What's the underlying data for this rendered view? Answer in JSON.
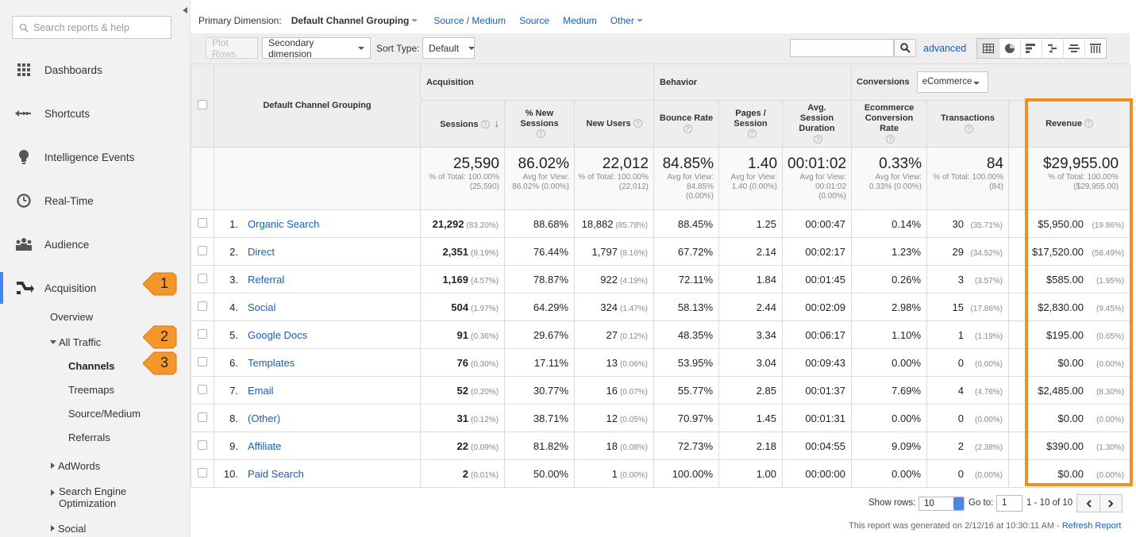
{
  "sidebar": {
    "search_placeholder": "Search reports & help",
    "nav": [
      {
        "label": "Dashboards",
        "icon": "grid-icon"
      },
      {
        "label": "Shortcuts",
        "icon": "shortcut-arrow-icon"
      },
      {
        "label": "Intelligence Events",
        "icon": "lightbulb-icon"
      },
      {
        "label": "Real-Time",
        "icon": "clock-icon"
      },
      {
        "label": "Audience",
        "icon": "people-icon"
      },
      {
        "label": "Acquisition",
        "icon": "acquisition-icon"
      }
    ],
    "sub": {
      "overview": "Overview",
      "all_traffic": "All Traffic",
      "channels": "Channels",
      "treemaps": "Treemaps",
      "source_medium": "Source/Medium",
      "referrals": "Referrals",
      "adwords": "AdWords",
      "seo": "Search Engine Optimization",
      "social": "Social"
    },
    "callouts": [
      "1",
      "2",
      "3"
    ]
  },
  "dimension_bar": {
    "label": "Primary Dimension:",
    "active": "Default Channel Grouping",
    "links": [
      "Source / Medium",
      "Source",
      "Medium",
      "Other"
    ]
  },
  "toolbar": {
    "plot_rows": "Plot Rows",
    "secondary_dimension": "Secondary dimension",
    "sort_type_label": "Sort Type:",
    "sort_type_value": "Default",
    "advanced": "advanced"
  },
  "table": {
    "col_dimension": "Default Channel Grouping",
    "groups": {
      "acquisition": "Acquisition",
      "behavior": "Behavior",
      "conversions": "Conversions",
      "conversions_select": "eCommerce"
    },
    "headers": {
      "sessions": "Sessions",
      "new_sessions": "% New Sessions",
      "new_users": "New Users",
      "bounce_rate": "Bounce Rate",
      "pages_session": "Pages / Session",
      "avg_duration": "Avg. Session Duration",
      "conv_rate": "Ecommerce Conversion Rate",
      "transactions": "Transactions",
      "revenue": "Revenue"
    },
    "totals": {
      "sessions": {
        "value": "25,590",
        "sub": "% of Total: 100.00% (25,590)"
      },
      "new_sessions": {
        "value": "86.02%",
        "sub": "Avg for View: 86.02% (0.00%)"
      },
      "new_users": {
        "value": "22,012",
        "sub": "% of Total: 100.00% (22,012)"
      },
      "bounce_rate": {
        "value": "84.85%",
        "sub": "Avg for View: 84.85% (0.00%)"
      },
      "pages_session": {
        "value": "1.40",
        "sub": "Avg for View: 1.40 (0.00%)"
      },
      "avg_duration": {
        "value": "00:01:02",
        "sub": "Avg for View: 00:01:02 (0.00%)"
      },
      "conv_rate": {
        "value": "0.33%",
        "sub": "Avg for View: 0.33% (0.00%)"
      },
      "transactions": {
        "value": "84",
        "sub": "% of Total: 100.00% (84)"
      },
      "revenue": {
        "value": "$29,955.00",
        "sub": "% of Total: 100.00% ($29,955.00)"
      }
    },
    "rows": [
      {
        "n": "1.",
        "channel": "Organic Search",
        "sessions": "21,292",
        "sessions_pct": "(83.20%)",
        "new_sessions": "88.68%",
        "new_users": "18,882",
        "new_users_pct": "(85.78%)",
        "bounce": "88.45%",
        "pages": "1.25",
        "duration": "00:00:47",
        "conv": "0.14%",
        "trans": "30",
        "trans_pct": "(35.71%)",
        "revenue": "$5,950.00",
        "revenue_pct": "(19.86%)"
      },
      {
        "n": "2.",
        "channel": "Direct",
        "sessions": "2,351",
        "sessions_pct": "(9.19%)",
        "new_sessions": "76.44%",
        "new_users": "1,797",
        "new_users_pct": "(8.16%)",
        "bounce": "67.72%",
        "pages": "2.14",
        "duration": "00:02:17",
        "conv": "1.23%",
        "trans": "29",
        "trans_pct": "(34.52%)",
        "revenue": "$17,520.00",
        "revenue_pct": "(58.49%)"
      },
      {
        "n": "3.",
        "channel": "Referral",
        "sessions": "1,169",
        "sessions_pct": "(4.57%)",
        "new_sessions": "78.87%",
        "new_users": "922",
        "new_users_pct": "(4.19%)",
        "bounce": "72.11%",
        "pages": "1.84",
        "duration": "00:01:45",
        "conv": "0.26%",
        "trans": "3",
        "trans_pct": "(3.57%)",
        "revenue": "$585.00",
        "revenue_pct": "(1.95%)"
      },
      {
        "n": "4.",
        "channel": "Social",
        "sessions": "504",
        "sessions_pct": "(1.97%)",
        "new_sessions": "64.29%",
        "new_users": "324",
        "new_users_pct": "(1.47%)",
        "bounce": "58.13%",
        "pages": "2.44",
        "duration": "00:02:09",
        "conv": "2.98%",
        "trans": "15",
        "trans_pct": "(17.86%)",
        "revenue": "$2,830.00",
        "revenue_pct": "(9.45%)"
      },
      {
        "n": "5.",
        "channel": "Google Docs",
        "sessions": "91",
        "sessions_pct": "(0.36%)",
        "new_sessions": "29.67%",
        "new_users": "27",
        "new_users_pct": "(0.12%)",
        "bounce": "48.35%",
        "pages": "3.34",
        "duration": "00:06:17",
        "conv": "1.10%",
        "trans": "1",
        "trans_pct": "(1.19%)",
        "revenue": "$195.00",
        "revenue_pct": "(0.65%)"
      },
      {
        "n": "6.",
        "channel": "Templates",
        "sessions": "76",
        "sessions_pct": "(0.30%)",
        "new_sessions": "17.11%",
        "new_users": "13",
        "new_users_pct": "(0.06%)",
        "bounce": "53.95%",
        "pages": "3.04",
        "duration": "00:09:43",
        "conv": "0.00%",
        "trans": "0",
        "trans_pct": "(0.00%)",
        "revenue": "$0.00",
        "revenue_pct": "(0.00%)"
      },
      {
        "n": "7.",
        "channel": "Email",
        "sessions": "52",
        "sessions_pct": "(0.20%)",
        "new_sessions": "30.77%",
        "new_users": "16",
        "new_users_pct": "(0.07%)",
        "bounce": "55.77%",
        "pages": "2.85",
        "duration": "00:01:37",
        "conv": "7.69%",
        "trans": "4",
        "trans_pct": "(4.76%)",
        "revenue": "$2,485.00",
        "revenue_pct": "(8.30%)"
      },
      {
        "n": "8.",
        "channel": "(Other)",
        "sessions": "31",
        "sessions_pct": "(0.12%)",
        "new_sessions": "38.71%",
        "new_users": "12",
        "new_users_pct": "(0.05%)",
        "bounce": "70.97%",
        "pages": "1.45",
        "duration": "00:01:31",
        "conv": "0.00%",
        "trans": "0",
        "trans_pct": "(0.00%)",
        "revenue": "$0.00",
        "revenue_pct": "(0.00%)"
      },
      {
        "n": "9.",
        "channel": "Affiliate",
        "sessions": "22",
        "sessions_pct": "(0.09%)",
        "new_sessions": "81.82%",
        "new_users": "18",
        "new_users_pct": "(0.08%)",
        "bounce": "72.73%",
        "pages": "2.18",
        "duration": "00:04:55",
        "conv": "9.09%",
        "trans": "2",
        "trans_pct": "(2.38%)",
        "revenue": "$390.00",
        "revenue_pct": "(1.30%)"
      },
      {
        "n": "10.",
        "channel": "Paid Search",
        "sessions": "2",
        "sessions_pct": "(0.01%)",
        "new_sessions": "50.00%",
        "new_users": "1",
        "new_users_pct": "(0.00%)",
        "bounce": "100.00%",
        "pages": "1.00",
        "duration": "00:00:00",
        "conv": "0.00%",
        "trans": "0",
        "trans_pct": "(0.00%)",
        "revenue": "$0.00",
        "revenue_pct": "(0.00%)"
      }
    ]
  },
  "footer": {
    "show_rows_label": "Show rows:",
    "show_rows_value": "10",
    "goto_label": "Go to:",
    "goto_value": "1",
    "range": "1 - 10 of 10",
    "generated": "This report was generated on 2/12/16 at 10:30:11 AM - ",
    "refresh": "Refresh Report"
  },
  "colors": {
    "accent": "#4285f4",
    "link": "#1a5fb4",
    "highlight": "#f0901e",
    "callout": "#f5962a"
  }
}
